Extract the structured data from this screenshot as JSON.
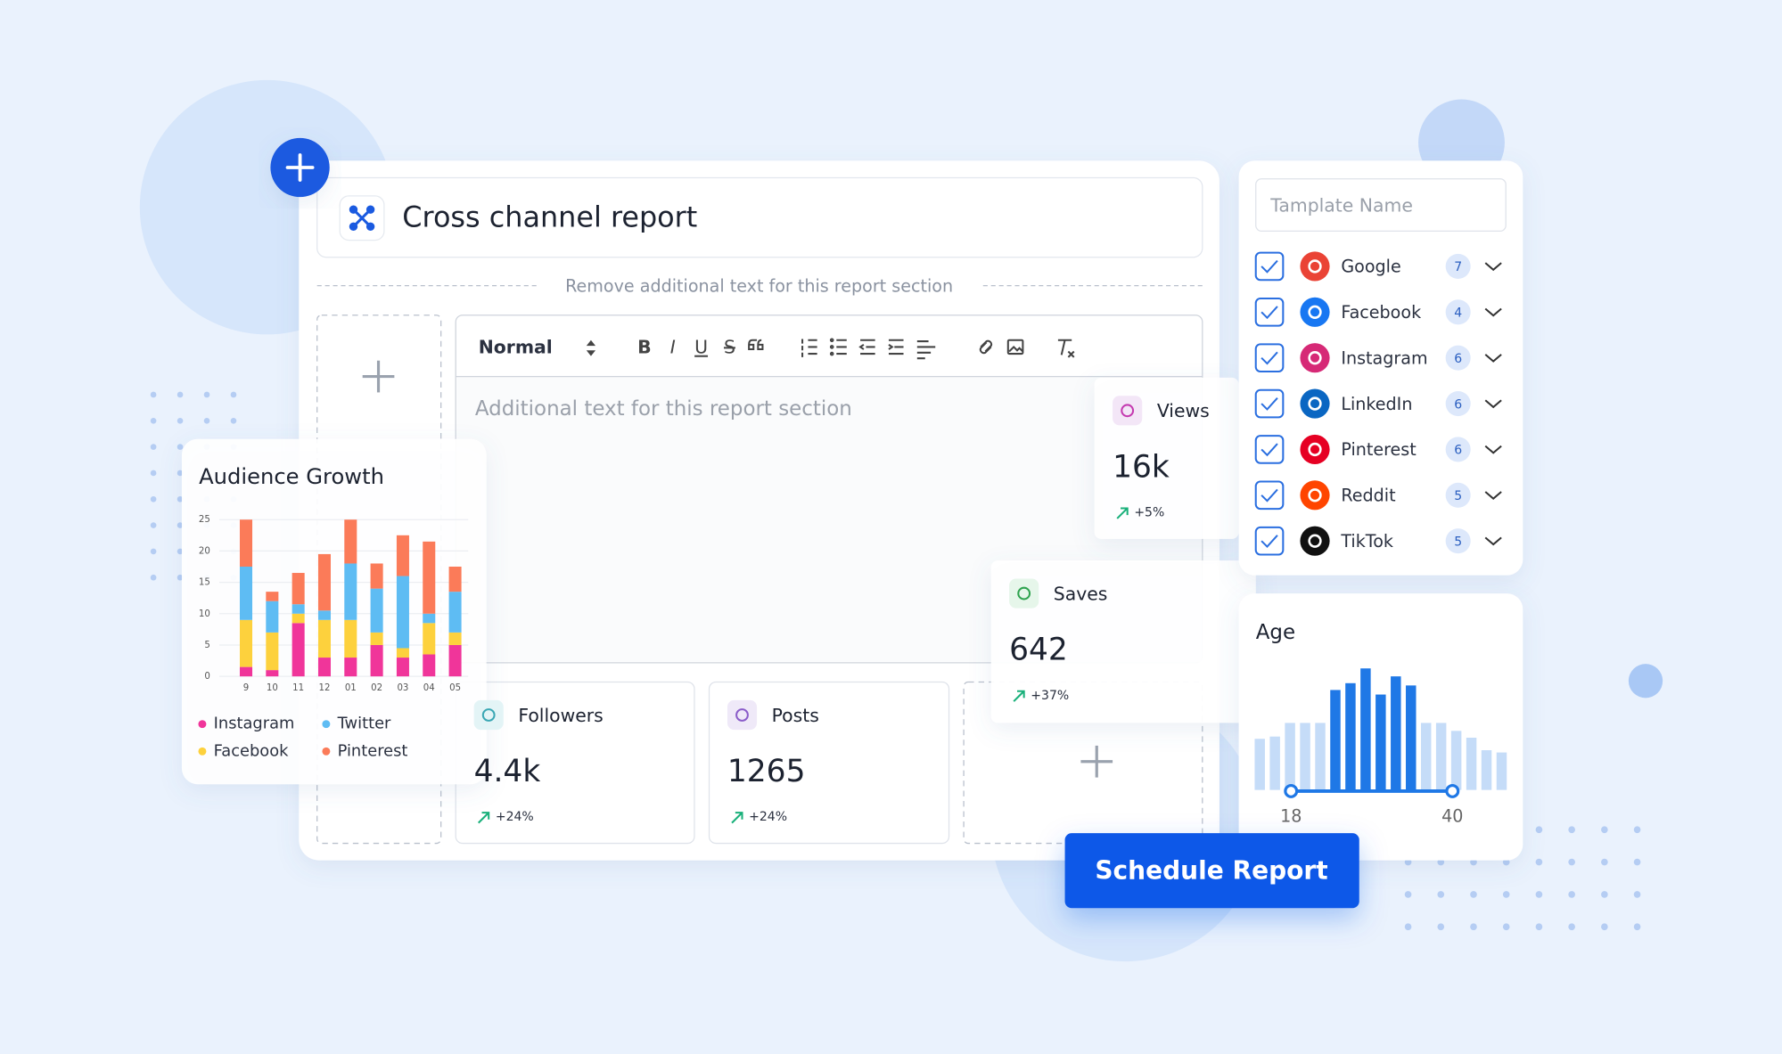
{
  "title": "Cross channel report",
  "section_note": "Remove additional text for this report section",
  "editor": {
    "style": "Normal",
    "format_buttons": [
      "B",
      "I",
      "U",
      "S"
    ],
    "placeholder": "Additional text for this report section"
  },
  "metrics": [
    {
      "label": "Views",
      "value": "16k",
      "change": "+5%"
    },
    {
      "label": "Saves",
      "value": "642",
      "change": "+37%"
    },
    {
      "label": "Followers",
      "value": "4.4k",
      "change": "+24%"
    },
    {
      "label": "Posts",
      "value": "1265",
      "change": "+24%"
    }
  ],
  "template": {
    "placeholder": "Tamplate Name"
  },
  "channels": [
    {
      "name": "Google",
      "count": 7,
      "checked": true
    },
    {
      "name": "Facebook",
      "count": 4,
      "checked": true
    },
    {
      "name": "Instagram",
      "count": 6,
      "checked": true
    },
    {
      "name": "LinkedIn",
      "count": 6,
      "checked": true
    },
    {
      "name": "Pinterest",
      "count": 6,
      "checked": true
    },
    {
      "name": "Reddit",
      "count": 5,
      "checked": true
    },
    {
      "name": "TikTok",
      "count": 5,
      "checked": true
    }
  ],
  "button": "Schedule Report",
  "chart_data": [
    {
      "type": "bar",
      "stacked": true,
      "title": "Audience Growth",
      "categories": [
        "9",
        "10",
        "11",
        "12",
        "01",
        "02",
        "03",
        "04",
        "05"
      ],
      "series": [
        {
          "name": "Instagram",
          "color": "#f0359a",
          "values": [
            1.5,
            1,
            8.5,
            3,
            3,
            5,
            3,
            3.5,
            5
          ]
        },
        {
          "name": "Facebook",
          "color": "#fdd13d",
          "values": [
            7.5,
            6,
            1.5,
            6,
            6,
            2,
            1.5,
            5,
            2
          ]
        },
        {
          "name": "Twitter",
          "color": "#5ebcf3",
          "values": [
            8.5,
            5,
            1.5,
            1.5,
            9,
            7,
            11.5,
            1.5,
            6.5
          ]
        },
        {
          "name": "Pinterest",
          "color": "#fb7b59",
          "values": [
            7.5,
            1.5,
            5,
            9,
            7,
            4,
            6.5,
            11.5,
            4
          ]
        }
      ],
      "ylim": [
        0,
        25
      ],
      "yticks": [
        0,
        5,
        10,
        15,
        20,
        25
      ],
      "grid": true,
      "legend": "bottom"
    },
    {
      "type": "bar",
      "title": "Age",
      "values": [
        45,
        47,
        59,
        59,
        59,
        88,
        94,
        107,
        84,
        100,
        92,
        59,
        59,
        52,
        46,
        35,
        33
      ],
      "colors": [
        "#c5dcf8",
        "#c5dcf8",
        "#c5dcf8",
        "#c5dcf8",
        "#c5dcf8",
        "#1f78e6",
        "#1f78e6",
        "#1f78e6",
        "#1f78e6",
        "#1f78e6",
        "#1f78e6",
        "#c5dcf8",
        "#c5dcf8",
        "#c5dcf8",
        "#c5dcf8",
        "#c5dcf8",
        "#c5dcf8"
      ],
      "range": [
        18,
        40
      ]
    }
  ]
}
